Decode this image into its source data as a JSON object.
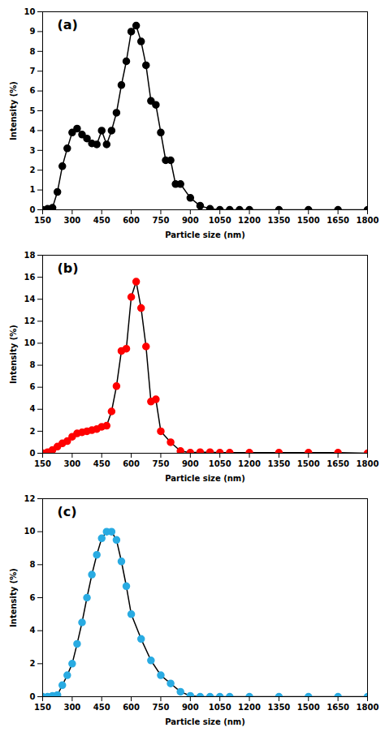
{
  "chart_data": [
    {
      "type": "line",
      "marker": "circle",
      "color": "#000000",
      "annotations": [
        "(a)"
      ],
      "xlabel": "Particle size (nm)",
      "ylabel": "Intensity (%)",
      "x": [
        150,
        175,
        200,
        225,
        250,
        275,
        300,
        325,
        350,
        375,
        400,
        425,
        450,
        475,
        500,
        525,
        550,
        575,
        600,
        625,
        650,
        675,
        700,
        725,
        750,
        775,
        800,
        825,
        850,
        900,
        950,
        1000,
        1050,
        1100,
        1150,
        1200,
        1350,
        1500,
        1650,
        1800
      ],
      "values": [
        0.0,
        0.05,
        0.1,
        0.9,
        2.2,
        3.1,
        3.9,
        4.1,
        3.8,
        3.6,
        3.35,
        3.3,
        4.0,
        3.3,
        4.0,
        4.9,
        6.3,
        7.5,
        9.0,
        9.3,
        8.5,
        7.3,
        5.5,
        5.3,
        3.9,
        2.5,
        2.5,
        1.3,
        1.3,
        0.6,
        0.2,
        0.05,
        0.0,
        0.0,
        0.0,
        0.0,
        0.0,
        0.0,
        0.0,
        0.0
      ],
      "xlim": [
        150,
        1800
      ],
      "xticks": [
        150,
        300,
        450,
        600,
        750,
        900,
        1050,
        1200,
        1350,
        1500,
        1650,
        1800
      ],
      "ylim": [
        0,
        10
      ],
      "yticks": [
        0,
        1,
        2,
        3,
        4,
        5,
        6,
        7,
        8,
        9,
        10
      ]
    },
    {
      "type": "line",
      "marker": "circle",
      "color": "#FF0000",
      "annotations": [
        "(b)"
      ],
      "xlabel": "Particle size (nm)",
      "ylabel": "Intensity (%)",
      "x": [
        150,
        175,
        200,
        225,
        250,
        275,
        300,
        325,
        350,
        375,
        400,
        425,
        450,
        475,
        500,
        525,
        550,
        575,
        600,
        625,
        650,
        675,
        700,
        725,
        750,
        800,
        850,
        900,
        950,
        1000,
        1050,
        1100,
        1200,
        1350,
        1500,
        1650,
        1800
      ],
      "values": [
        0.0,
        0.1,
        0.3,
        0.6,
        0.9,
        1.1,
        1.5,
        1.8,
        1.9,
        2.0,
        2.1,
        2.2,
        2.4,
        2.5,
        3.8,
        6.1,
        9.3,
        9.5,
        14.2,
        15.6,
        13.2,
        9.7,
        4.7,
        4.9,
        2.0,
        1.0,
        0.2,
        0.05,
        0.1,
        0.1,
        0.05,
        0.05,
        0.05,
        0.05,
        0.05,
        0.05,
        0.0
      ],
      "xlim": [
        150,
        1800
      ],
      "xticks": [
        150,
        300,
        450,
        600,
        750,
        900,
        1050,
        1200,
        1350,
        1500,
        1650,
        1800
      ],
      "ylim": [
        0,
        18
      ],
      "yticks": [
        0,
        2,
        4,
        6,
        8,
        10,
        12,
        14,
        16,
        18
      ]
    },
    {
      "type": "line",
      "marker": "circle",
      "color": "#29ABE2",
      "annotations": [
        "(c)"
      ],
      "xlabel": "Particle size (nm)",
      "ylabel": "Intensity (%)",
      "x": [
        150,
        175,
        200,
        225,
        250,
        275,
        300,
        325,
        350,
        375,
        400,
        425,
        450,
        475,
        500,
        525,
        550,
        575,
        600,
        650,
        700,
        750,
        800,
        850,
        900,
        950,
        1000,
        1050,
        1100,
        1200,
        1350,
        1500,
        1650,
        1800
      ],
      "values": [
        0.0,
        0.0,
        0.05,
        0.1,
        0.7,
        1.3,
        2.0,
        3.2,
        4.5,
        6.0,
        7.4,
        8.6,
        9.6,
        10.0,
        10.0,
        9.5,
        8.2,
        6.7,
        5.0,
        3.5,
        2.2,
        1.3,
        0.8,
        0.3,
        0.05,
        0.0,
        0.0,
        0.0,
        0.0,
        0.0,
        0.0,
        0.0,
        0.0,
        0.0
      ],
      "xlim": [
        150,
        1800
      ],
      "xticks": [
        150,
        300,
        450,
        600,
        750,
        900,
        1050,
        1200,
        1350,
        1500,
        1650,
        1800
      ],
      "ylim": [
        0,
        12
      ],
      "yticks": [
        0,
        2,
        4,
        6,
        8,
        10,
        12
      ]
    }
  ]
}
